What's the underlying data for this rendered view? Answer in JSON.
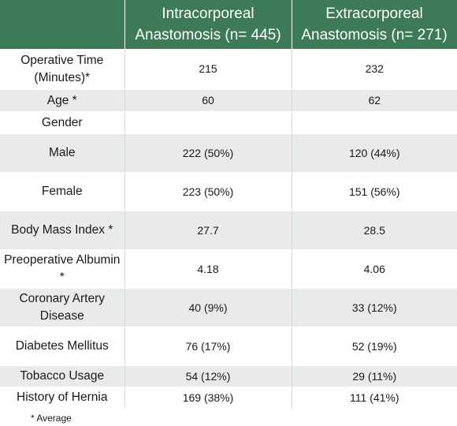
{
  "table": {
    "headers": {
      "col1": "",
      "col2": "Intracorporeal Anastomosis (n= 445)",
      "col3": "Extracorporeal Anastomosis (n= 271)"
    },
    "rows": [
      {
        "label": "Operative Time (Minutes)*",
        "intra": "215",
        "extra": "232"
      },
      {
        "label": "Age *",
        "intra": "60",
        "extra": "62"
      },
      {
        "label": "Gender",
        "intra": "",
        "extra": ""
      },
      {
        "label": "Male",
        "intra": "222 (50%)",
        "extra": "120 (44%)"
      },
      {
        "label": "Female",
        "intra": "223 (50%)",
        "extra": "151 (56%)"
      },
      {
        "label": "Body Mass Index *",
        "intra": "27.7",
        "extra": "28.5"
      },
      {
        "label": "Preoperative Albumin *",
        "intra": "4.18",
        "extra": "4.06"
      },
      {
        "label": "Coronary Artery Disease",
        "intra": "40 (9%)",
        "extra": "33 (12%)"
      },
      {
        "label": "Diabetes Mellitus",
        "intra": "76  (17%)",
        "extra": "52 (19%)"
      },
      {
        "label": "Tobacco Usage",
        "intra": "54 (12%)",
        "extra": "29 (11%)"
      },
      {
        "label": "History of Hernia",
        "intra": "169  (38%)",
        "extra": "111 (41%)"
      }
    ]
  },
  "footnote": "* Average",
  "colors": {
    "header_bg": "#3d7a57",
    "row_alt_bg": "#e9ebe9"
  }
}
